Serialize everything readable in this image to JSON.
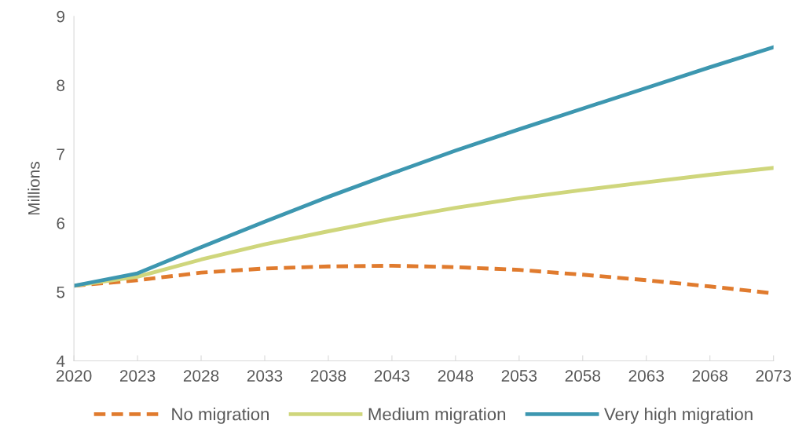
{
  "chart_data": {
    "type": "line",
    "ylabel": "Millions",
    "categories": [
      "2020",
      "2023",
      "2028",
      "2033",
      "2038",
      "2043",
      "2048",
      "2053",
      "2058",
      "2063",
      "2068",
      "2073"
    ],
    "ylim": [
      4,
      9
    ],
    "yticks": [
      4,
      5,
      6,
      7,
      8,
      9
    ],
    "grid": false,
    "legend": "bottom",
    "marker": "none",
    "series": [
      {
        "name": "No migration",
        "color": "#e07b2e",
        "line_style": "dashed",
        "values": [
          5.09,
          5.17,
          5.28,
          5.34,
          5.37,
          5.38,
          5.36,
          5.32,
          5.25,
          5.17,
          5.08,
          4.98
        ]
      },
      {
        "name": "Medium migration",
        "color": "#cfd67c",
        "line_style": "solid",
        "values": [
          5.09,
          5.22,
          5.47,
          5.69,
          5.88,
          6.06,
          6.22,
          6.36,
          6.48,
          6.59,
          6.7,
          6.8
        ]
      },
      {
        "name": "Very high migration",
        "color": "#3d97b0",
        "line_style": "solid",
        "values": [
          5.09,
          5.27,
          5.65,
          6.02,
          6.38,
          6.72,
          7.05,
          7.36,
          7.66,
          7.96,
          8.26,
          8.55
        ]
      }
    ]
  }
}
